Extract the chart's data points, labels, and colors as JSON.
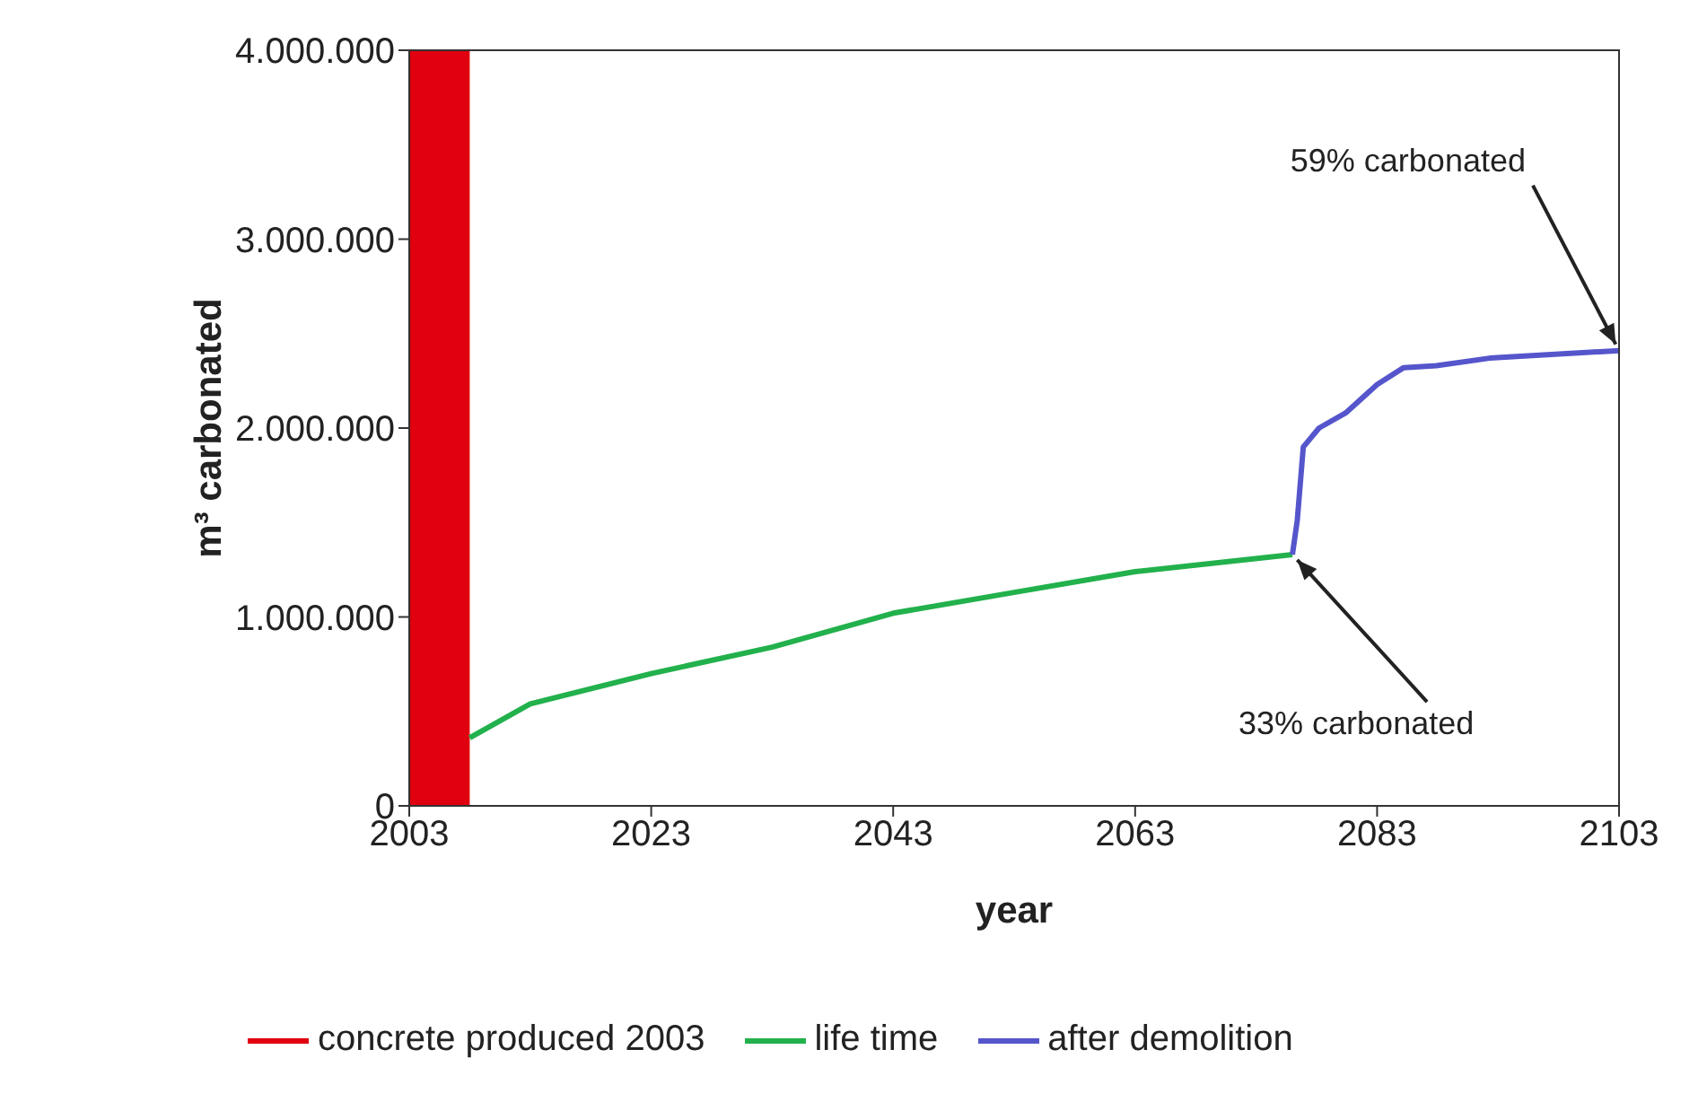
{
  "chart_data": {
    "type": "line",
    "xlabel": "year",
    "ylabel": "m³ carbonated",
    "xlim": [
      2003,
      2103
    ],
    "xticks": [
      2003,
      2023,
      2043,
      2063,
      2083,
      2103
    ],
    "ylim": [
      0,
      4000000
    ],
    "yticks": [
      {
        "value": 0,
        "label": "0"
      },
      {
        "value": 1000000,
        "label": "1.000.000"
      },
      {
        "value": 2000000,
        "label": "2.000.000"
      },
      {
        "value": 3000000,
        "label": "3.000.000"
      },
      {
        "value": 4000000,
        "label": "4.000.000"
      }
    ],
    "legend": "bottom",
    "marker": "none",
    "line_style": "solid",
    "series": [
      {
        "name": "concrete produced 2003",
        "type": "area",
        "color": "#e0000f",
        "x": [
          2003,
          2008
        ],
        "values": [
          4000000,
          4000000
        ]
      },
      {
        "name": "life time",
        "color": "#22b14c",
        "x": [
          2008,
          2013,
          2023,
          2033,
          2043,
          2053,
          2063,
          2076
        ],
        "values": [
          360000,
          540000,
          700000,
          840000,
          1020000,
          1130000,
          1240000,
          1330000
        ]
      },
      {
        "name": "after demolition",
        "color": "#5555cc",
        "x": [
          2076,
          2076.4,
          2076.9,
          2078.2,
          2080.4,
          2083,
          2085.2,
          2087.9,
          2092.3,
          2103
        ],
        "values": [
          1330000,
          1510000,
          1900000,
          2000000,
          2080000,
          2230000,
          2320000,
          2330000,
          2370000,
          2410000
        ]
      }
    ],
    "annotations": [
      {
        "text": "59% carbonated",
        "x": 2103,
        "y": 2410000
      },
      {
        "text": "33% carbonated",
        "x": 2076,
        "y": 1330000
      }
    ]
  }
}
